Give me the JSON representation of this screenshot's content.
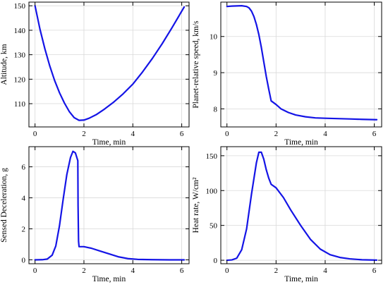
{
  "colors": {
    "line": "#1414e6",
    "grid": "#d9d9d9",
    "frame": "#000000"
  },
  "chart_data": [
    {
      "type": "line",
      "title": "",
      "xlabel": "Time, min",
      "ylabel": "Altitude, km",
      "xlim": [
        -0.25,
        6.3
      ],
      "ylim": [
        100.5,
        151.5
      ],
      "xticks": [
        0,
        2,
        4,
        6
      ],
      "yticks": [
        110,
        120,
        130,
        140,
        150
      ],
      "grid": true,
      "series": [
        {
          "x": [
            0,
            0.2,
            0.4,
            0.6,
            0.8,
            1.0,
            1.2,
            1.4,
            1.6,
            1.8,
            2.0,
            2.2,
            2.5,
            2.8,
            3.2,
            3.6,
            4.0,
            4.4,
            4.8,
            5.2,
            5.6,
            6.1
          ],
          "y": [
            150,
            140.5,
            132.5,
            125.5,
            119.5,
            114.5,
            110.3,
            106.8,
            104.3,
            103.2,
            103.3,
            104,
            105.5,
            107.5,
            110.5,
            114,
            118,
            123,
            128.5,
            134.5,
            141,
            149.5
          ]
        }
      ]
    },
    {
      "type": "line",
      "title": "",
      "xlabel": "Time, min",
      "ylabel": "Planet-relative speed, km/s",
      "xlim": [
        -0.25,
        6.3
      ],
      "ylim": [
        7.5,
        10.95
      ],
      "xticks": [
        0,
        2,
        4,
        6
      ],
      "yticks": [
        8,
        9,
        10
      ],
      "grid": true,
      "series": [
        {
          "x": [
            0,
            0.2,
            0.4,
            0.6,
            0.8,
            0.9,
            1.0,
            1.1,
            1.2,
            1.3,
            1.4,
            1.5,
            1.6,
            1.7,
            1.8,
            2.0,
            2.2,
            2.5,
            2.8,
            3.2,
            3.6,
            4.0,
            4.5,
            5.0,
            5.5,
            6.1
          ],
          "y": [
            10.83,
            10.84,
            10.845,
            10.85,
            10.83,
            10.79,
            10.7,
            10.55,
            10.33,
            10.05,
            9.7,
            9.3,
            8.9,
            8.55,
            8.22,
            8.12,
            8.0,
            7.9,
            7.83,
            7.78,
            7.75,
            7.74,
            7.73,
            7.72,
            7.71,
            7.7
          ]
        }
      ]
    },
    {
      "type": "line",
      "title": "",
      "xlabel": "Time, min",
      "ylabel": "Sensed Deceleration, g",
      "xlim": [
        -0.25,
        6.3
      ],
      "ylim": [
        -0.25,
        7.3
      ],
      "xticks": [
        0,
        2,
        4,
        6
      ],
      "yticks": [
        0,
        2,
        4,
        6
      ],
      "grid": true,
      "series": [
        {
          "x": [
            0,
            0.3,
            0.5,
            0.7,
            0.85,
            1.0,
            1.15,
            1.3,
            1.45,
            1.55,
            1.65,
            1.75,
            1.76,
            1.78,
            1.8,
            2.0,
            2.3,
            2.7,
            3.0,
            3.4,
            3.8,
            4.2,
            4.8,
            5.5,
            6.1
          ],
          "y": [
            0,
            0.01,
            0.05,
            0.3,
            0.9,
            2.2,
            3.9,
            5.5,
            6.6,
            7.0,
            6.9,
            6.4,
            3.5,
            1.2,
            0.85,
            0.85,
            0.75,
            0.55,
            0.4,
            0.2,
            0.08,
            0.03,
            0.01,
            0.0,
            0.0
          ]
        }
      ]
    },
    {
      "type": "line",
      "title": "",
      "xlabel": "Time, min",
      "ylabel": "Heat rate, W/cm²",
      "xlim": [
        -0.25,
        6.3
      ],
      "ylim": [
        -5,
        163
      ],
      "xticks": [
        0,
        2,
        4,
        6
      ],
      "yticks": [
        0,
        50,
        100,
        150
      ],
      "grid": true,
      "series": [
        {
          "x": [
            0,
            0.2,
            0.4,
            0.6,
            0.8,
            1.0,
            1.2,
            1.3,
            1.4,
            1.5,
            1.6,
            1.7,
            1.8,
            2.0,
            2.3,
            2.6,
            3.0,
            3.4,
            3.8,
            4.2,
            4.6,
            5.0,
            5.5,
            6.1
          ],
          "y": [
            0,
            0.5,
            3,
            15,
            45,
            95,
            140,
            155,
            155,
            145,
            130,
            118,
            109,
            104,
            90,
            72,
            50,
            30,
            16,
            8,
            4,
            2,
            0.7,
            0.2
          ]
        }
      ]
    }
  ]
}
